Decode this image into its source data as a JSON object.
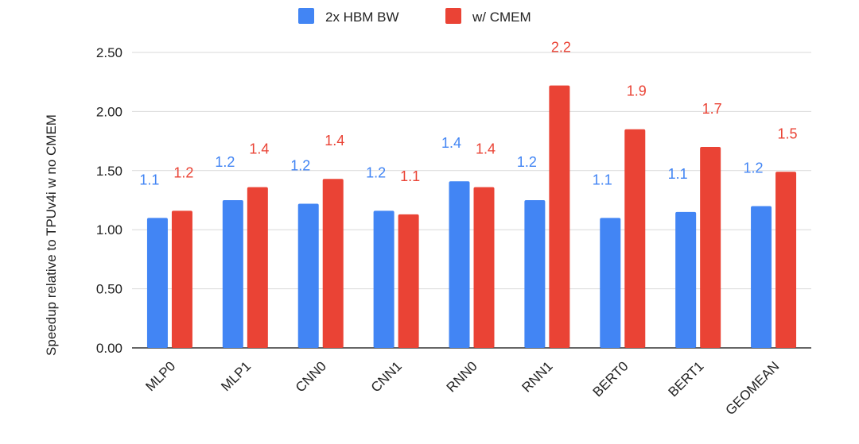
{
  "chart_data": {
    "type": "bar",
    "title": "",
    "xlabel": "",
    "ylabel": "Speedup relative to TPUv4i w no CMEM",
    "ylim": [
      0,
      2.5
    ],
    "yticks": [
      "0.00",
      "0.50",
      "1.00",
      "1.50",
      "2.00",
      "2.50"
    ],
    "grid": true,
    "legend_position": "top-center",
    "categories": [
      "MLP0",
      "MLP1",
      "CNN0",
      "CNN1",
      "RNN0",
      "RNN1",
      "BERT0",
      "BERT1",
      "GEOMEAN"
    ],
    "series": [
      {
        "name": "2x HBM BW",
        "color": "#4285F4",
        "values": [
          1.1,
          1.25,
          1.22,
          1.16,
          1.41,
          1.25,
          1.1,
          1.15,
          1.2
        ],
        "labels": [
          "1.1",
          "1.2",
          "1.2",
          "1.2",
          "1.4",
          "1.2",
          "1.1",
          "1.1",
          "1.2"
        ]
      },
      {
        "name": "w/ CMEM",
        "color": "#EA4335",
        "values": [
          1.16,
          1.36,
          1.43,
          1.13,
          1.36,
          2.22,
          1.85,
          1.7,
          1.49
        ],
        "labels": [
          "1.2",
          "1.4",
          "1.4",
          "1.1",
          "1.4",
          "2.2",
          "1.9",
          "1.7",
          "1.5"
        ]
      }
    ]
  }
}
